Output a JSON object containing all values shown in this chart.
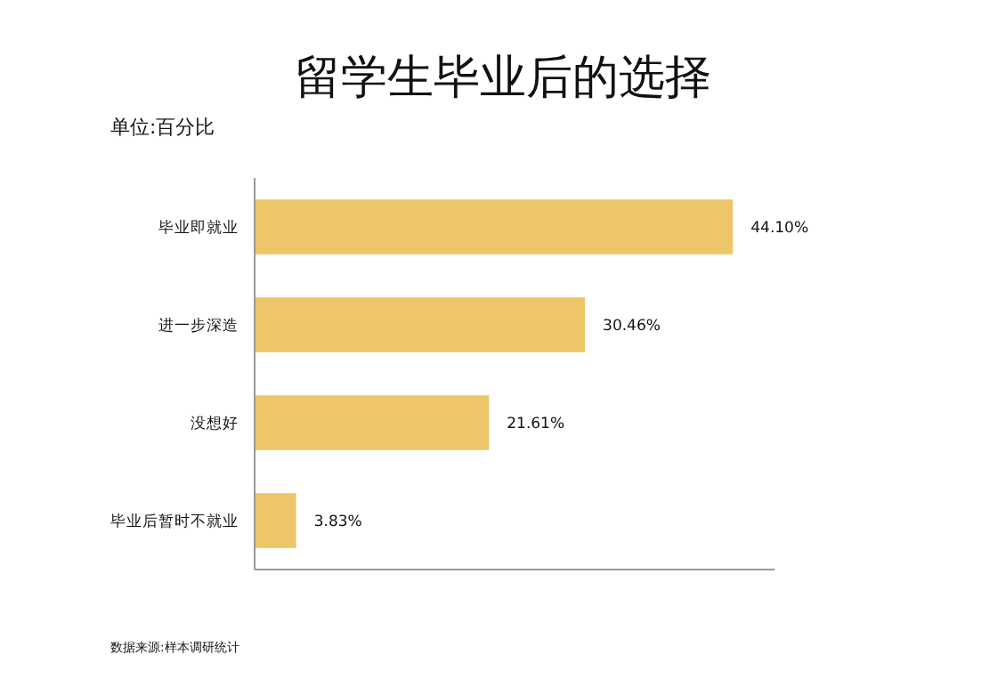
{
  "chart_data": {
    "type": "bar",
    "orientation": "horizontal",
    "title": "留学生毕业后的选择",
    "subtitle": "单位:百分比",
    "categories": [
      "毕业即就业",
      "进一步深造",
      "没想好",
      "毕业后暂时不就业"
    ],
    "values": [
      44.1,
      30.46,
      21.61,
      3.83
    ],
    "value_labels": [
      "44.10%",
      "30.46%",
      "21.61%",
      "3.83%"
    ],
    "color": "#ecc668",
    "annotations": [
      "数据来源:样本调研统计"
    ]
  }
}
